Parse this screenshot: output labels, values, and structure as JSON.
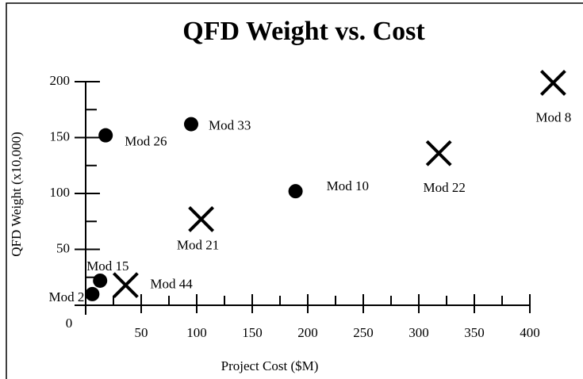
{
  "chart_data": {
    "type": "scatter",
    "title": "QFD Weight vs. Cost",
    "xlabel": "Project Cost ($M)",
    "ylabel": "QFD Weight (x10,000)",
    "xlim": [
      0,
      400
    ],
    "ylim": [
      0,
      200
    ],
    "xticks": [
      50,
      100,
      150,
      200,
      250,
      300,
      350,
      400
    ],
    "yticks": [
      0,
      50,
      100,
      150,
      200
    ],
    "xminorticks": [
      25,
      75,
      125,
      175,
      225,
      275,
      325,
      375
    ],
    "yminorticks": [
      25,
      75,
      125,
      175
    ],
    "series": [
      {
        "marker": "circle",
        "color": "#000000",
        "x": [
          6,
          13,
          18,
          95,
          189
        ],
        "values": [
          10,
          22,
          152,
          162,
          102
        ],
        "labels": [
          "Mod 2",
          "Mod 15",
          "Mod 26",
          "Mod 33",
          "Mod 10"
        ]
      },
      {
        "marker": "cross",
        "color": "#000000",
        "x": [
          36,
          104,
          318,
          421
        ],
        "values": [
          18,
          77,
          136,
          199
        ],
        "labels": [
          "Mod 44",
          "Mod 21",
          "Mod 22",
          "Mod 8"
        ]
      }
    ]
  }
}
